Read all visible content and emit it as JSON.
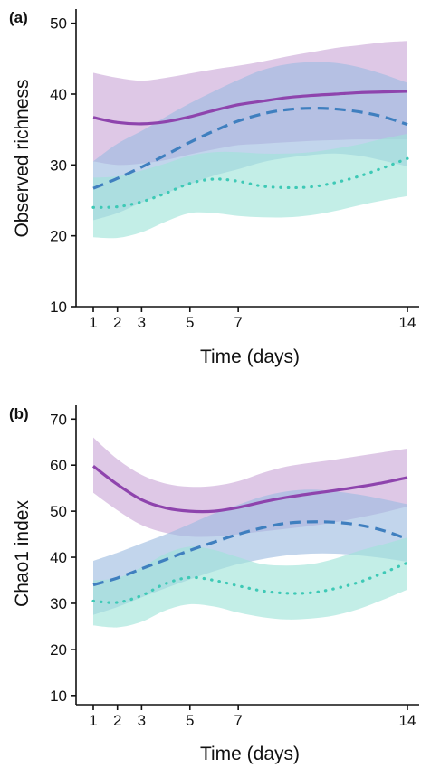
{
  "chart_data": [
    {
      "type": "line",
      "panel_label": "(a)",
      "xlabel": "Time (days)",
      "ylabel": "Observed richness",
      "xlim": [
        1,
        14
      ],
      "ylim": [
        10,
        52
      ],
      "xticks": [
        1,
        2,
        3,
        5,
        7,
        14
      ],
      "yticks": [
        10,
        20,
        30,
        40,
        50
      ],
      "grid": false,
      "legend": "none",
      "series": [
        {
          "style": "solid",
          "color": "#8e44ad",
          "band_color": "#c9a6d6",
          "x": [
            1,
            2,
            3,
            4,
            5,
            6,
            7,
            8,
            9,
            10,
            11,
            12,
            13,
            14
          ],
          "y": [
            36.7,
            36.0,
            35.8,
            36.1,
            36.8,
            37.7,
            38.5,
            39.0,
            39.5,
            39.8,
            40.0,
            40.2,
            40.3,
            40.4
          ],
          "lower": [
            30.5,
            30.0,
            30.2,
            30.7,
            31.5,
            32.2,
            32.8,
            33.0,
            33.2,
            33.4,
            33.5,
            33.6,
            33.6,
            33.6
          ],
          "upper": [
            43.0,
            42.3,
            41.9,
            42.3,
            42.9,
            43.5,
            44.0,
            44.6,
            45.3,
            45.9,
            46.5,
            46.9,
            47.3,
            47.5
          ]
        },
        {
          "style": "dashed",
          "color": "#3f7fbf",
          "band_color": "#9dbce0",
          "x": [
            1,
            2,
            3,
            4,
            5,
            6,
            7,
            8,
            9,
            10,
            11,
            12,
            13,
            14
          ],
          "y": [
            26.7,
            28.1,
            29.7,
            31.4,
            33.2,
            34.8,
            36.2,
            37.2,
            37.8,
            38.0,
            37.9,
            37.5,
            36.8,
            35.7
          ],
          "lower": [
            22.2,
            23.2,
            24.7,
            26.0,
            27.3,
            28.5,
            29.4,
            30.4,
            31.0,
            31.4,
            31.6,
            31.3,
            30.6,
            29.8
          ],
          "upper": [
            30.5,
            33.0,
            34.8,
            36.8,
            38.7,
            40.4,
            42.0,
            43.4,
            44.2,
            44.5,
            44.4,
            43.8,
            42.8,
            41.6
          ]
        },
        {
          "style": "dotted",
          "color": "#3ec9b6",
          "band_color": "#9ee3d9",
          "x": [
            1,
            2,
            3,
            4,
            5,
            6,
            7,
            8,
            9,
            10,
            11,
            12,
            13,
            14
          ],
          "y": [
            24.0,
            24.1,
            24.8,
            26.0,
            27.4,
            28.0,
            27.7,
            27.0,
            26.8,
            26.9,
            27.5,
            28.4,
            29.6,
            30.9
          ],
          "lower": [
            19.8,
            19.7,
            20.5,
            22.0,
            23.2,
            23.2,
            22.8,
            22.6,
            22.6,
            22.9,
            23.5,
            24.3,
            25.0,
            25.6
          ],
          "upper": [
            28.2,
            28.4,
            29.2,
            30.2,
            31.3,
            31.8,
            31.8,
            31.6,
            31.6,
            31.8,
            32.3,
            32.9,
            33.7,
            34.4
          ]
        }
      ]
    },
    {
      "type": "line",
      "panel_label": "(b)",
      "xlabel": "Time (days)",
      "ylabel": "Chao1 index",
      "xlim": [
        1,
        14
      ],
      "ylim": [
        8,
        73
      ],
      "xticks": [
        1,
        2,
        3,
        5,
        7,
        14
      ],
      "yticks": [
        10,
        20,
        30,
        40,
        50,
        60,
        70
      ],
      "grid": false,
      "legend": "none",
      "series": [
        {
          "style": "solid",
          "color": "#8e44ad",
          "band_color": "#c9a6d6",
          "x": [
            1,
            2,
            3,
            4,
            5,
            6,
            7,
            8,
            9,
            10,
            11,
            12,
            13,
            14
          ],
          "y": [
            59.8,
            55.8,
            52.5,
            50.7,
            50.0,
            50.0,
            50.8,
            52.0,
            53.0,
            53.8,
            54.5,
            55.3,
            56.2,
            57.3
          ],
          "lower": [
            54.0,
            50.2,
            47.0,
            45.3,
            44.5,
            44.5,
            45.0,
            45.6,
            46.2,
            46.8,
            47.6,
            48.6,
            49.7,
            51.0
          ],
          "upper": [
            66.0,
            61.3,
            57.9,
            56.0,
            55.3,
            55.5,
            56.5,
            58.3,
            59.7,
            60.5,
            61.2,
            62.0,
            62.8,
            63.6
          ]
        },
        {
          "style": "dashed",
          "color": "#3f7fbf",
          "band_color": "#9dbce0",
          "x": [
            1,
            2,
            3,
            4,
            5,
            6,
            7,
            8,
            9,
            10,
            11,
            12,
            13,
            14
          ],
          "y": [
            34.0,
            35.5,
            37.5,
            39.5,
            41.5,
            43.3,
            45.0,
            46.4,
            47.4,
            47.7,
            47.6,
            47.0,
            45.8,
            44.0
          ],
          "lower": [
            27.5,
            29.2,
            31.3,
            33.3,
            35.2,
            37.0,
            38.5,
            39.6,
            40.4,
            40.8,
            40.8,
            40.4,
            39.8,
            39.0
          ],
          "upper": [
            39.2,
            41.0,
            43.0,
            45.0,
            47.2,
            49.5,
            51.4,
            53.2,
            54.3,
            54.7,
            54.3,
            53.6,
            52.6,
            51.5
          ]
        },
        {
          "style": "dotted",
          "color": "#3ec9b6",
          "band_color": "#9ee3d9",
          "x": [
            1,
            2,
            3,
            4,
            5,
            6,
            7,
            8,
            9,
            10,
            11,
            12,
            13,
            14
          ],
          "y": [
            30.5,
            30.2,
            31.7,
            34.3,
            35.6,
            35.0,
            33.8,
            32.7,
            32.2,
            32.3,
            33.2,
            34.6,
            36.6,
            38.8
          ],
          "lower": [
            25.2,
            24.8,
            26.0,
            28.5,
            29.8,
            29.3,
            28.0,
            27.0,
            26.5,
            26.7,
            27.4,
            28.8,
            30.8,
            33.0
          ],
          "upper": [
            35.0,
            35.5,
            37.8,
            40.8,
            42.3,
            41.6,
            40.0,
            38.5,
            38.2,
            38.5,
            39.7,
            41.4,
            42.8,
            44.3
          ]
        }
      ]
    }
  ]
}
